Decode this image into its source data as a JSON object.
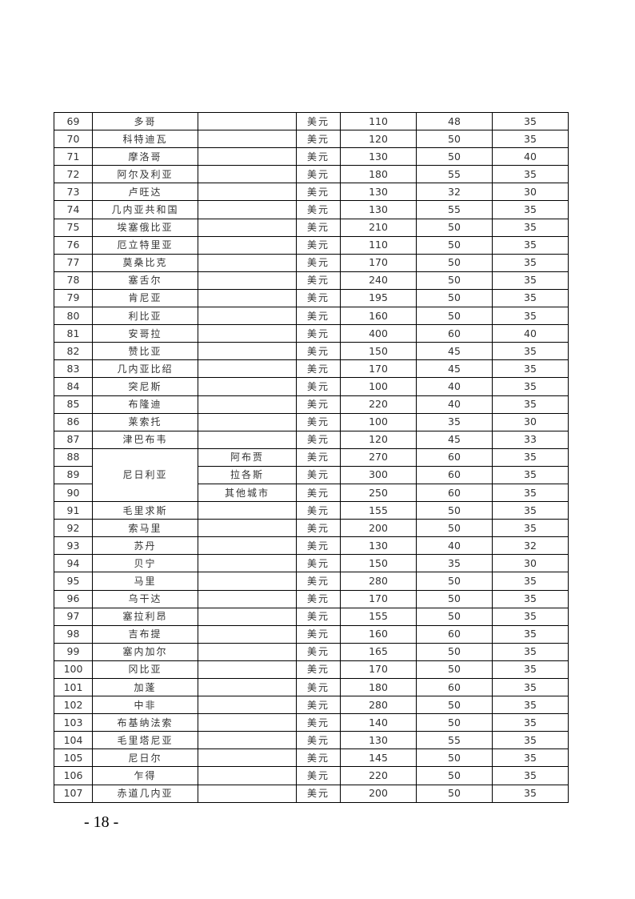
{
  "table": {
    "rows": [
      {
        "no": "69",
        "country": "多哥",
        "city": "",
        "currency": "美元",
        "a": "110",
        "b": "48",
        "c": "35"
      },
      {
        "no": "70",
        "country": "科特迪瓦",
        "city": "",
        "currency": "美元",
        "a": "120",
        "b": "50",
        "c": "35"
      },
      {
        "no": "71",
        "country": "摩洛哥",
        "city": "",
        "currency": "美元",
        "a": "130",
        "b": "50",
        "c": "40"
      },
      {
        "no": "72",
        "country": "阿尔及利亚",
        "city": "",
        "currency": "美元",
        "a": "180",
        "b": "55",
        "c": "35"
      },
      {
        "no": "73",
        "country": "卢旺达",
        "city": "",
        "currency": "美元",
        "a": "130",
        "b": "32",
        "c": "30"
      },
      {
        "no": "74",
        "country": "几内亚共和国",
        "city": "",
        "currency": "美元",
        "a": "130",
        "b": "55",
        "c": "35"
      },
      {
        "no": "75",
        "country": "埃塞俄比亚",
        "city": "",
        "currency": "美元",
        "a": "210",
        "b": "50",
        "c": "35"
      },
      {
        "no": "76",
        "country": "厄立特里亚",
        "city": "",
        "currency": "美元",
        "a": "110",
        "b": "50",
        "c": "35"
      },
      {
        "no": "77",
        "country": "莫桑比克",
        "city": "",
        "currency": "美元",
        "a": "170",
        "b": "50",
        "c": "35"
      },
      {
        "no": "78",
        "country": "塞舌尔",
        "city": "",
        "currency": "美元",
        "a": "240",
        "b": "50",
        "c": "35"
      },
      {
        "no": "79",
        "country": "肯尼亚",
        "city": "",
        "currency": "美元",
        "a": "195",
        "b": "50",
        "c": "35"
      },
      {
        "no": "80",
        "country": "利比亚",
        "city": "",
        "currency": "美元",
        "a": "160",
        "b": "50",
        "c": "35"
      },
      {
        "no": "81",
        "country": "安哥拉",
        "city": "",
        "currency": "美元",
        "a": "400",
        "b": "60",
        "c": "40"
      },
      {
        "no": "82",
        "country": "赞比亚",
        "city": "",
        "currency": "美元",
        "a": "150",
        "b": "45",
        "c": "35"
      },
      {
        "no": "83",
        "country": "几内亚比绍",
        "city": "",
        "currency": "美元",
        "a": "170",
        "b": "45",
        "c": "35"
      },
      {
        "no": "84",
        "country": "突尼斯",
        "city": "",
        "currency": "美元",
        "a": "100",
        "b": "40",
        "c": "35"
      },
      {
        "no": "85",
        "country": "布隆迪",
        "city": "",
        "currency": "美元",
        "a": "220",
        "b": "40",
        "c": "35"
      },
      {
        "no": "86",
        "country": "莱索托",
        "city": "",
        "currency": "美元",
        "a": "100",
        "b": "35",
        "c": "30"
      },
      {
        "no": "87",
        "country": "津巴布韦",
        "city": "",
        "currency": "美元",
        "a": "120",
        "b": "45",
        "c": "33"
      },
      {
        "no": "88",
        "country": "尼日利亚",
        "span": 3,
        "city": "阿布贾",
        "currency": "美元",
        "a": "270",
        "b": "60",
        "c": "35"
      },
      {
        "no": "89",
        "country": null,
        "city": "拉各斯",
        "currency": "美元",
        "a": "300",
        "b": "60",
        "c": "35"
      },
      {
        "no": "90",
        "country": null,
        "city": "其他城市",
        "currency": "美元",
        "a": "250",
        "b": "60",
        "c": "35"
      },
      {
        "no": "91",
        "country": "毛里求斯",
        "city": "",
        "currency": "美元",
        "a": "155",
        "b": "50",
        "c": "35"
      },
      {
        "no": "92",
        "country": "索马里",
        "city": "",
        "currency": "美元",
        "a": "200",
        "b": "50",
        "c": "35"
      },
      {
        "no": "93",
        "country": "苏丹",
        "city": "",
        "currency": "美元",
        "a": "130",
        "b": "40",
        "c": "32"
      },
      {
        "no": "94",
        "country": "贝宁",
        "city": "",
        "currency": "美元",
        "a": "150",
        "b": "35",
        "c": "30"
      },
      {
        "no": "95",
        "country": "马里",
        "city": "",
        "currency": "美元",
        "a": "280",
        "b": "50",
        "c": "35"
      },
      {
        "no": "96",
        "country": "乌干达",
        "city": "",
        "currency": "美元",
        "a": "170",
        "b": "50",
        "c": "35"
      },
      {
        "no": "97",
        "country": "塞拉利昂",
        "city": "",
        "currency": "美元",
        "a": "155",
        "b": "50",
        "c": "35"
      },
      {
        "no": "98",
        "country": "吉布提",
        "city": "",
        "currency": "美元",
        "a": "160",
        "b": "60",
        "c": "35"
      },
      {
        "no": "99",
        "country": "塞内加尔",
        "city": "",
        "currency": "美元",
        "a": "165",
        "b": "50",
        "c": "35"
      },
      {
        "no": "100",
        "country": "冈比亚",
        "city": "",
        "currency": "美元",
        "a": "170",
        "b": "50",
        "c": "35"
      },
      {
        "no": "101",
        "country": "加蓬",
        "city": "",
        "currency": "美元",
        "a": "180",
        "b": "60",
        "c": "35"
      },
      {
        "no": "102",
        "country": "中非",
        "city": "",
        "currency": "美元",
        "a": "280",
        "b": "50",
        "c": "35"
      },
      {
        "no": "103",
        "country": "布基纳法索",
        "city": "",
        "currency": "美元",
        "a": "140",
        "b": "50",
        "c": "35"
      },
      {
        "no": "104",
        "country": "毛里塔尼亚",
        "city": "",
        "currency": "美元",
        "a": "130",
        "b": "55",
        "c": "35"
      },
      {
        "no": "105",
        "country": "尼日尔",
        "city": "",
        "currency": "美元",
        "a": "145",
        "b": "50",
        "c": "35"
      },
      {
        "no": "106",
        "country": "乍得",
        "city": "",
        "currency": "美元",
        "a": "220",
        "b": "50",
        "c": "35"
      },
      {
        "no": "107",
        "country": "赤道几内亚",
        "city": "",
        "currency": "美元",
        "a": "200",
        "b": "50",
        "c": "35"
      }
    ]
  },
  "footer": {
    "page_number": "- 18 -"
  }
}
